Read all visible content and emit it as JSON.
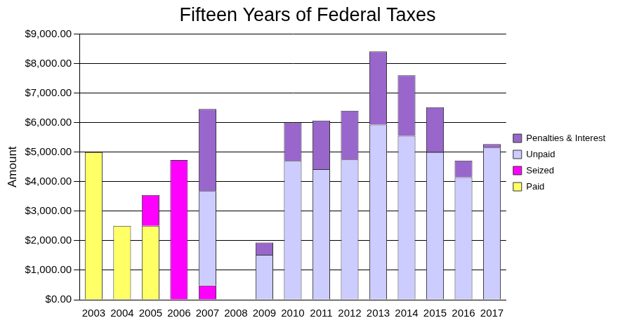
{
  "chart_data": {
    "type": "bar",
    "title": "Fifteen Years of Federal Taxes",
    "y_label": "Amount",
    "categories": [
      "2003",
      "2004",
      "2005",
      "2006",
      "2007",
      "2008",
      "2009",
      "2010",
      "2011",
      "2012",
      "2013",
      "2014",
      "2015",
      "2016",
      "2017"
    ],
    "series": [
      {
        "name": "Paid",
        "color": "#ffff66",
        "values": [
          5000,
          2500,
          2500,
          null,
          null,
          null,
          null,
          null,
          null,
          null,
          null,
          null,
          null,
          null,
          null
        ]
      },
      {
        "name": "Seized",
        "color": "#ff00ff",
        "values": [
          null,
          null,
          1050,
          4730,
          480,
          null,
          null,
          null,
          null,
          null,
          null,
          null,
          null,
          null,
          null
        ]
      },
      {
        "name": "Unpaid",
        "color": "#ccccff",
        "values": [
          null,
          null,
          null,
          null,
          3200,
          null,
          1520,
          4700,
          4420,
          4750,
          5930,
          5550,
          5000,
          4150,
          5150
        ]
      },
      {
        "name": "Penalties & Interest",
        "color": "#9966cc",
        "values": [
          null,
          null,
          null,
          null,
          2780,
          null,
          420,
          1300,
          1650,
          1650,
          2480,
          2050,
          1520,
          560,
          120
        ]
      }
    ],
    "stacked": true,
    "ylim": [
      0,
      9000
    ],
    "yticks": [
      {
        "value": 0,
        "label": "$0.00"
      },
      {
        "value": 1000,
        "label": "$1,000.00"
      },
      {
        "value": 2000,
        "label": "$2,000.00"
      },
      {
        "value": 3000,
        "label": "$3,000.00"
      },
      {
        "value": 4000,
        "label": "$4,000.00"
      },
      {
        "value": 5000,
        "label": "$5,000.00"
      },
      {
        "value": 6000,
        "label": "$6,000.00"
      },
      {
        "value": 7000,
        "label": "$7,000.00"
      },
      {
        "value": 8000,
        "label": "$8,000.00"
      },
      {
        "value": 9000,
        "label": "$9,000.00"
      }
    ],
    "grid": true,
    "legend": "right"
  }
}
